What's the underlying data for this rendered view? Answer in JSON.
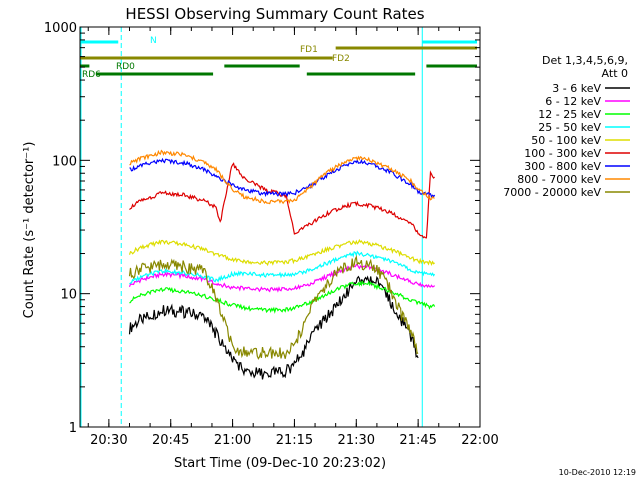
{
  "chart_data": {
    "type": "line",
    "title": "HESSI Observing Summary Count Rates",
    "xlabel": "Start Time (09-Dec-10 20:23:02)",
    "ylabel": "Count Rate (s⁻¹ detector⁻¹)",
    "yscale": "log",
    "xlim_minutes": [
      0,
      97
    ],
    "ylim": [
      1,
      1000
    ],
    "x_ticks": [
      {
        "m": 7,
        "label": "20:30"
      },
      {
        "m": 22,
        "label": "20:45"
      },
      {
        "m": 37,
        "label": "21:00"
      },
      {
        "m": 52,
        "label": "21:15"
      },
      {
        "m": 67,
        "label": "21:30"
      },
      {
        "m": 82,
        "label": "21:45"
      },
      {
        "m": 97,
        "label": "22:00"
      }
    ],
    "y_ticks": [
      {
        "v": 1,
        "label": "1"
      },
      {
        "v": 10,
        "label": "10"
      },
      {
        "v": 100,
        "label": "100"
      },
      {
        "v": 1000,
        "label": "1000"
      }
    ],
    "legend": {
      "position": "right",
      "title_lines": [
        "Det 1,3,4,5,6,9,",
        "Att 0"
      ]
    },
    "series": [
      {
        "name": "3 - 6 keV",
        "color": "#000000",
        "x": [
          12,
          15,
          20,
          25,
          30,
          32,
          34,
          36,
          37,
          40,
          45,
          50,
          52,
          54,
          57,
          62,
          65,
          67,
          70,
          73,
          75,
          77,
          79,
          81,
          82
        ],
        "y": [
          5.5,
          6.5,
          7.5,
          7.3,
          6.8,
          5.6,
          4.4,
          3.6,
          3.3,
          2.6,
          2.5,
          2.6,
          3.0,
          3.6,
          5.2,
          8,
          10.5,
          12.5,
          13,
          11.5,
          9,
          7,
          5.5,
          4.2,
          3.3
        ]
      },
      {
        "name": "6 - 12 keV",
        "color": "#ff00ff",
        "x": [
          12,
          15,
          20,
          25,
          30,
          33,
          37,
          40,
          45,
          50,
          52,
          55,
          60,
          65,
          67,
          70,
          75,
          80,
          82,
          85,
          86
        ],
        "y": [
          11.5,
          12.8,
          14,
          13.6,
          12.8,
          12,
          11,
          11,
          10.7,
          10.8,
          11,
          11.5,
          13.5,
          15.6,
          16,
          15.8,
          14.2,
          12.3,
          11.7,
          11.5,
          11.5
        ]
      },
      {
        "name": "12 - 25 keV",
        "color": "#00ff00",
        "x": [
          12,
          15,
          20,
          25,
          30,
          33,
          37,
          40,
          45,
          50,
          52,
          55,
          60,
          65,
          67,
          70,
          75,
          80,
          82,
          85,
          86
        ],
        "y": [
          8.8,
          9.8,
          10.8,
          10.4,
          9.6,
          9,
          8.2,
          7.8,
          7.5,
          7.6,
          7.8,
          8.4,
          10,
          11.6,
          12,
          11.8,
          10.5,
          9,
          8.5,
          8,
          8
        ]
      },
      {
        "name": "25 - 50 keV",
        "color": "#00ffff",
        "x": [
          12,
          15,
          20,
          25,
          30,
          33,
          37,
          40,
          45,
          50,
          52,
          55,
          60,
          65,
          67,
          70,
          75,
          80,
          82,
          85,
          86
        ],
        "y": [
          12,
          13.5,
          14.8,
          14.3,
          13.5,
          12.6,
          14,
          14.2,
          13.8,
          13.8,
          14,
          14.8,
          17,
          19.6,
          20,
          19.6,
          17.6,
          15.2,
          14.5,
          14,
          14
        ]
      },
      {
        "name": "50 - 100 keV",
        "color": "#dddd00",
        "x": [
          12,
          15,
          20,
          25,
          30,
          33,
          37,
          40,
          45,
          50,
          52,
          55,
          60,
          65,
          67,
          70,
          75,
          80,
          82,
          85,
          86
        ],
        "y": [
          20,
          22.5,
          24.5,
          23.5,
          21.5,
          19.8,
          18,
          17.5,
          17,
          17.2,
          17.8,
          18.8,
          21.5,
          24,
          24.5,
          24,
          21.5,
          18.6,
          17.5,
          17,
          17
        ]
      },
      {
        "name": "100 - 300 keV",
        "color": "#dd0000",
        "x": [
          12,
          15,
          20,
          25,
          30,
          33,
          34,
          37,
          40,
          45,
          50,
          52,
          55,
          60,
          65,
          67,
          70,
          75,
          80,
          82,
          84,
          85,
          86
        ],
        "y": [
          44,
          50,
          57,
          55,
          50,
          44,
          34,
          95,
          72,
          60,
          54,
          28,
          32,
          40,
          46,
          47,
          46,
          41,
          34,
          29,
          26,
          80,
          75
        ]
      },
      {
        "name": "300 - 800 keV",
        "color": "#0000ff",
        "x": [
          12,
          15,
          20,
          25,
          30,
          33,
          37,
          40,
          45,
          50,
          52,
          55,
          60,
          65,
          67,
          70,
          75,
          80,
          82,
          85,
          86
        ],
        "y": [
          85,
          92,
          100,
          96,
          86,
          76,
          65,
          60,
          56,
          56,
          57,
          62,
          78,
          94,
          98,
          95,
          82,
          67,
          58,
          55,
          55
        ]
      },
      {
        "name": "800 - 7000 keV",
        "color": "#ff8800",
        "x": [
          12,
          15,
          20,
          25,
          30,
          33,
          37,
          40,
          45,
          50,
          52,
          55,
          60,
          65,
          67,
          70,
          75,
          80,
          82,
          85,
          86
        ],
        "y": [
          95,
          104,
          115,
          110,
          97,
          85,
          60,
          53,
          49,
          49,
          50,
          60,
          82,
          100,
          105,
          102,
          87,
          71,
          60,
          52,
          52
        ]
      },
      {
        "name": "7000 - 20000 keV",
        "color": "#888800",
        "x": [
          12,
          15,
          20,
          25,
          30,
          32,
          34,
          36,
          37,
          40,
          45,
          50,
          52,
          54,
          57,
          62,
          65,
          67,
          70,
          73,
          75,
          77,
          79,
          81,
          82
        ],
        "y": [
          14,
          15.5,
          16.5,
          16,
          14.8,
          11,
          7.5,
          5,
          4,
          3.6,
          3.6,
          3.6,
          4.2,
          5.5,
          9,
          14,
          16.5,
          17,
          16.5,
          14,
          11,
          8,
          6,
          4.5,
          3.6
        ]
      }
    ],
    "annotations": {
      "flag_lines": [
        {
          "label": "N",
          "color": "#00ffff",
          "segments": [
            [
              -1,
              10
            ],
            [
              83,
              97
            ]
          ]
        },
        {
          "label": "FD1",
          "color": "#888800",
          "segments": [
            [
              62,
              97
            ]
          ]
        },
        {
          "label": "FD2",
          "color": "#888800",
          "segments": [
            [
              -1,
              62
            ]
          ]
        },
        {
          "label": "RD0",
          "color": "#007700",
          "segments": [
            [
              -1,
              3
            ],
            [
              35,
              54
            ],
            [
              84,
              97
            ]
          ]
        },
        {
          "label": "RD6",
          "color": "#007700",
          "segments": [
            [
              4,
              33
            ],
            [
              55,
              82
            ]
          ]
        }
      ],
      "vertical_lines_minutes": [
        -1,
        10,
        83,
        97
      ],
      "vertical_line_color": "#00ffff"
    },
    "footer": "10-Dec-2010 12:19"
  }
}
